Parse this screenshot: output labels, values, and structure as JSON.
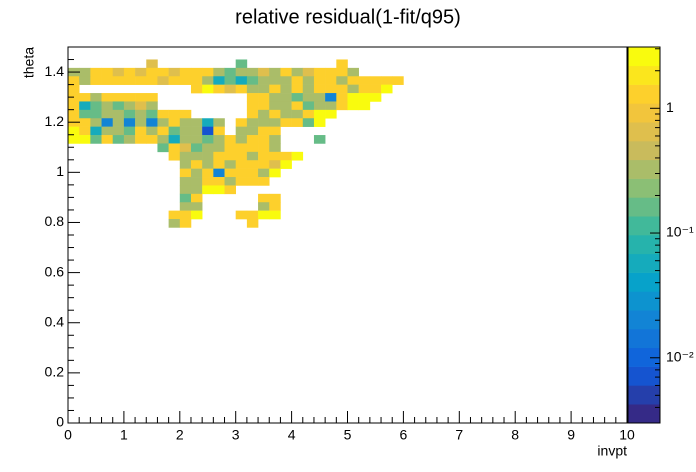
{
  "chart_data": {
    "type": "heatmap",
    "title": "relative residual(1-fit/q95)",
    "x_label": "invpt",
    "y_label": "theta",
    "xlim": [
      0,
      10
    ],
    "xticks": [
      0,
      1,
      2,
      3,
      4,
      5,
      6,
      7,
      8,
      9,
      10
    ],
    "ylim": [
      0,
      1.5
    ],
    "yticks": [
      0,
      0.2,
      0.4,
      0.6,
      0.8,
      1,
      1.2,
      1.4
    ],
    "zlim": [
      0.003,
      3.1
    ],
    "zticks": [
      {
        "value": 0.01,
        "label": "10⁻²"
      },
      {
        "value": 0.1,
        "label": "10⁻¹"
      },
      1
    ],
    "zscale": "log",
    "colormap": "bird",
    "x": [
      0.1,
      0.3,
      0.5,
      0.7,
      0.9,
      1.1,
      1.3,
      1.5,
      1.7,
      1.9,
      2.1,
      2.3,
      2.5,
      2.7,
      2.9,
      3.1,
      3.3,
      3.5,
      3.7,
      3.9,
      4.1,
      4.3,
      4.5,
      4.7,
      4.9,
      5.1,
      5.3,
      5.5,
      5.7,
      5.9
    ],
    "y": [
      1.4335,
      1.4,
      1.3665,
      1.333,
      1.2995,
      1.266,
      1.2325,
      1.199,
      1.1655,
      1.132,
      1.0985,
      1.065,
      1.0315,
      0.998,
      0.9645,
      0.931,
      0.8975,
      0.864,
      0.8305,
      0.797
    ],
    "z": [
      [
        null,
        null,
        null,
        null,
        null,
        null,
        null,
        0.7,
        null,
        null,
        null,
        null,
        null,
        null,
        null,
        0.15,
        null,
        null,
        null,
        null,
        null,
        null,
        null,
        null,
        1.2,
        null,
        null,
        null,
        null,
        null
      ],
      [
        0.35,
        0.35,
        1.2,
        1.2,
        0.7,
        1.2,
        0.7,
        1.2,
        1.2,
        0.7,
        1.2,
        1.2,
        1.2,
        0.35,
        0.15,
        0.35,
        0.35,
        0.7,
        0.35,
        1.2,
        0.35,
        0.7,
        1.2,
        1.2,
        1.2,
        0.35,
        null,
        null,
        null,
        null
      ],
      [
        1.2,
        0.35,
        1.2,
        1.2,
        1.2,
        1.2,
        1.2,
        1.2,
        0.7,
        1.2,
        1.2,
        1.2,
        0.35,
        0.05,
        0.15,
        0.05,
        0.15,
        0.35,
        0.35,
        0.35,
        1.2,
        0.35,
        1.2,
        1.2,
        0.35,
        1.2,
        1.2,
        1.2,
        1.2,
        1.2
      ],
      [
        1.2,
        null,
        null,
        null,
        null,
        null,
        null,
        null,
        null,
        null,
        null,
        1.2,
        2.5,
        1.2,
        0.7,
        1.2,
        0.35,
        0.35,
        1.2,
        0.35,
        1.2,
        0.35,
        1.2,
        1.2,
        1.2,
        0.35,
        1.2,
        1.2,
        2.5,
        null
      ],
      [
        1.2,
        1.2,
        0.35,
        1.2,
        1.2,
        1.2,
        1.2,
        1.2,
        null,
        null,
        null,
        null,
        null,
        null,
        null,
        null,
        1.2,
        1.2,
        0.35,
        0.35,
        0.15,
        0.35,
        0.35,
        0.02,
        1.2,
        2.5,
        2.5,
        2.5,
        null,
        null
      ],
      [
        1.2,
        0.05,
        0.15,
        0.35,
        0.15,
        0.35,
        0.7,
        0.35,
        null,
        null,
        null,
        null,
        null,
        null,
        null,
        null,
        1.2,
        1.2,
        0.35,
        0.35,
        1.2,
        0.15,
        0.35,
        0.35,
        1.2,
        2.5,
        2.5,
        null,
        null,
        null
      ],
      [
        1.2,
        0.15,
        0.15,
        0.35,
        0.35,
        0.15,
        0.35,
        0.15,
        1.2,
        1.2,
        1.2,
        null,
        null,
        null,
        null,
        null,
        1.2,
        0.35,
        1.2,
        0.35,
        0.35,
        1.2,
        2.5,
        2.5,
        null,
        null,
        null,
        null,
        null,
        null
      ],
      [
        1.2,
        1.2,
        0.35,
        0.02,
        0.35,
        0.02,
        0.35,
        0.02,
        0.35,
        1.2,
        0.35,
        0.35,
        0.05,
        0.35,
        null,
        1.2,
        0.35,
        0.35,
        0.35,
        1.2,
        1.2,
        0.15,
        2.5,
        null,
        null,
        null,
        null,
        null,
        null,
        null
      ],
      [
        2.5,
        1.2,
        0.05,
        0.35,
        0.35,
        0.15,
        1.2,
        0.35,
        1.2,
        0.15,
        0.35,
        0.35,
        0.008,
        1.2,
        null,
        0.35,
        0.35,
        1.2,
        1.2,
        null,
        null,
        null,
        null,
        null,
        null,
        null,
        null,
        null,
        null,
        null
      ],
      [
        2.5,
        2.5,
        0.15,
        1.2,
        0.15,
        0.35,
        1.2,
        1.2,
        0.35,
        0.05,
        0.35,
        0.35,
        0.15,
        0.35,
        1.2,
        0.35,
        1.2,
        1.2,
        0.35,
        null,
        null,
        null,
        0.15,
        null,
        null,
        null,
        null,
        null,
        null,
        null
      ],
      [
        null,
        null,
        null,
        null,
        null,
        null,
        null,
        null,
        0.15,
        1.2,
        0.7,
        0.15,
        0.35,
        0.35,
        1.2,
        1.2,
        1.2,
        1.2,
        0.35,
        null,
        null,
        null,
        null,
        null,
        null,
        null,
        null,
        null,
        null,
        null
      ],
      [
        null,
        null,
        null,
        null,
        null,
        null,
        null,
        null,
        null,
        1.2,
        0.35,
        0.35,
        0.35,
        1.2,
        1.2,
        1.2,
        0.35,
        1.2,
        1.2,
        1.2,
        2.5,
        null,
        null,
        null,
        null,
        null,
        null,
        null,
        null,
        null
      ],
      [
        null,
        null,
        null,
        null,
        null,
        null,
        null,
        null,
        null,
        null,
        0.35,
        1.2,
        0.35,
        1.2,
        0.35,
        1.2,
        1.2,
        1.2,
        0.7,
        2.5,
        null,
        null,
        null,
        null,
        null,
        null,
        null,
        null,
        null,
        null
      ],
      [
        null,
        null,
        null,
        null,
        null,
        null,
        null,
        null,
        null,
        null,
        1.2,
        0.35,
        1.2,
        0.02,
        1.2,
        1.2,
        1.2,
        0.35,
        2.5,
        null,
        null,
        null,
        null,
        null,
        null,
        null,
        null,
        null,
        null,
        null
      ],
      [
        null,
        null,
        null,
        null,
        null,
        null,
        null,
        null,
        null,
        null,
        0.35,
        0.35,
        1.2,
        1.2,
        0.35,
        1.2,
        1.2,
        1.2,
        null,
        null,
        null,
        null,
        null,
        null,
        null,
        null,
        null,
        null,
        null,
        null
      ],
      [
        null,
        null,
        null,
        null,
        null,
        null,
        null,
        null,
        null,
        null,
        0.35,
        0.35,
        2.5,
        2.5,
        1.2,
        null,
        null,
        null,
        null,
        null,
        null,
        null,
        null,
        null,
        null,
        null,
        null,
        null,
        null,
        null
      ],
      [
        null,
        null,
        null,
        null,
        null,
        null,
        null,
        null,
        null,
        null,
        0.15,
        1.2,
        null,
        null,
        null,
        null,
        null,
        1.2,
        1.2,
        null,
        null,
        null,
        null,
        null,
        null,
        null,
        null,
        null,
        null,
        null
      ],
      [
        null,
        null,
        null,
        null,
        null,
        null,
        null,
        null,
        null,
        null,
        0.35,
        0.35,
        null,
        null,
        null,
        null,
        null,
        0.35,
        1.2,
        null,
        null,
        null,
        null,
        null,
        null,
        null,
        null,
        null,
        null,
        null
      ],
      [
        null,
        null,
        null,
        null,
        null,
        null,
        null,
        null,
        null,
        1.2,
        1.2,
        2.5,
        null,
        null,
        null,
        1.2,
        1.2,
        2.5,
        2.5,
        null,
        null,
        null,
        null,
        null,
        null,
        null,
        null,
        null,
        null,
        null
      ],
      [
        null,
        null,
        null,
        null,
        null,
        null,
        null,
        null,
        null,
        0.35,
        1.2,
        null,
        null,
        null,
        null,
        null,
        1.2,
        null,
        null,
        null,
        null,
        null,
        null,
        null,
        null,
        null,
        null,
        null,
        null,
        null
      ]
    ]
  }
}
